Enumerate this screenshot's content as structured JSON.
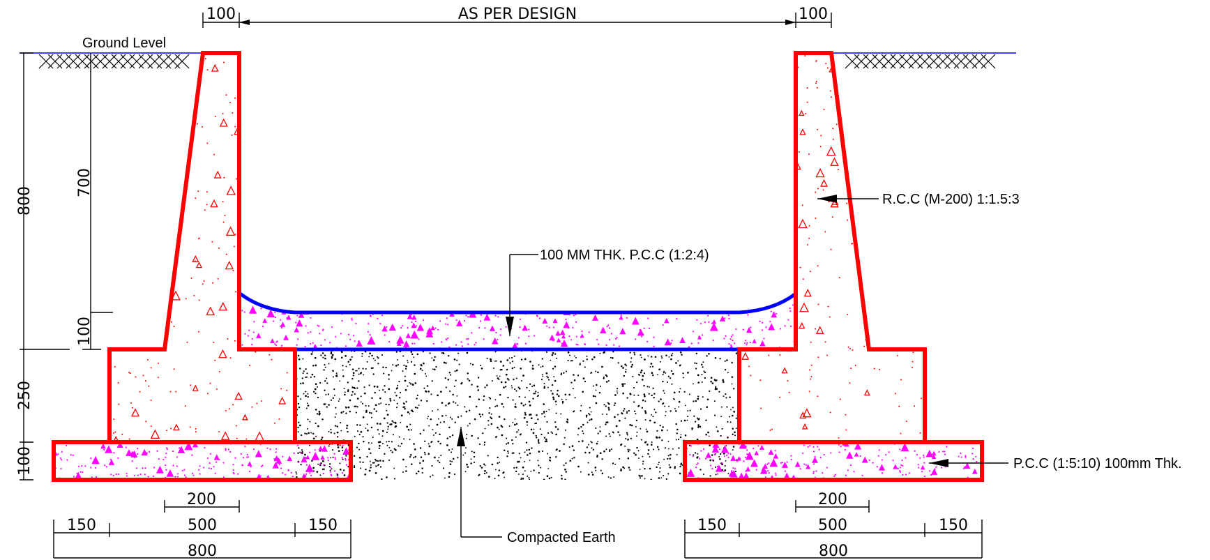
{
  "labels": {
    "ground_level": "Ground Level",
    "rcc": "R.C.C  (M-200) 1:1.5:3",
    "pcc_top": "100 MM THK. P.C.C (1:2:4)",
    "pcc_base": "P.C.C (1:5:10) 100mm Thk.",
    "compacted_earth": "Compacted  Earth"
  },
  "dimensions": {
    "top_left_100": "100",
    "top_as_per_design": "AS PER DESIGN",
    "top_right_100": "100",
    "left_800": "800",
    "left_700": "700",
    "left_100_upper": "100",
    "left_250": "250",
    "left_100_lower": "100",
    "left_200": "200",
    "left_150_a": "150",
    "left_500": "500",
    "left_150_b": "150",
    "left_800_bottom": "800",
    "right_200": "200",
    "right_150_a": "150",
    "right_500": "500",
    "right_150_b": "150",
    "right_800_bottom": "800"
  },
  "colors": {
    "concrete_outline": "#ff0000",
    "pcc_outline": "#0000ff",
    "pcc_hatch": "#ff00ff",
    "ground_line": "#0000ff",
    "earth_hatch": "#000000"
  }
}
